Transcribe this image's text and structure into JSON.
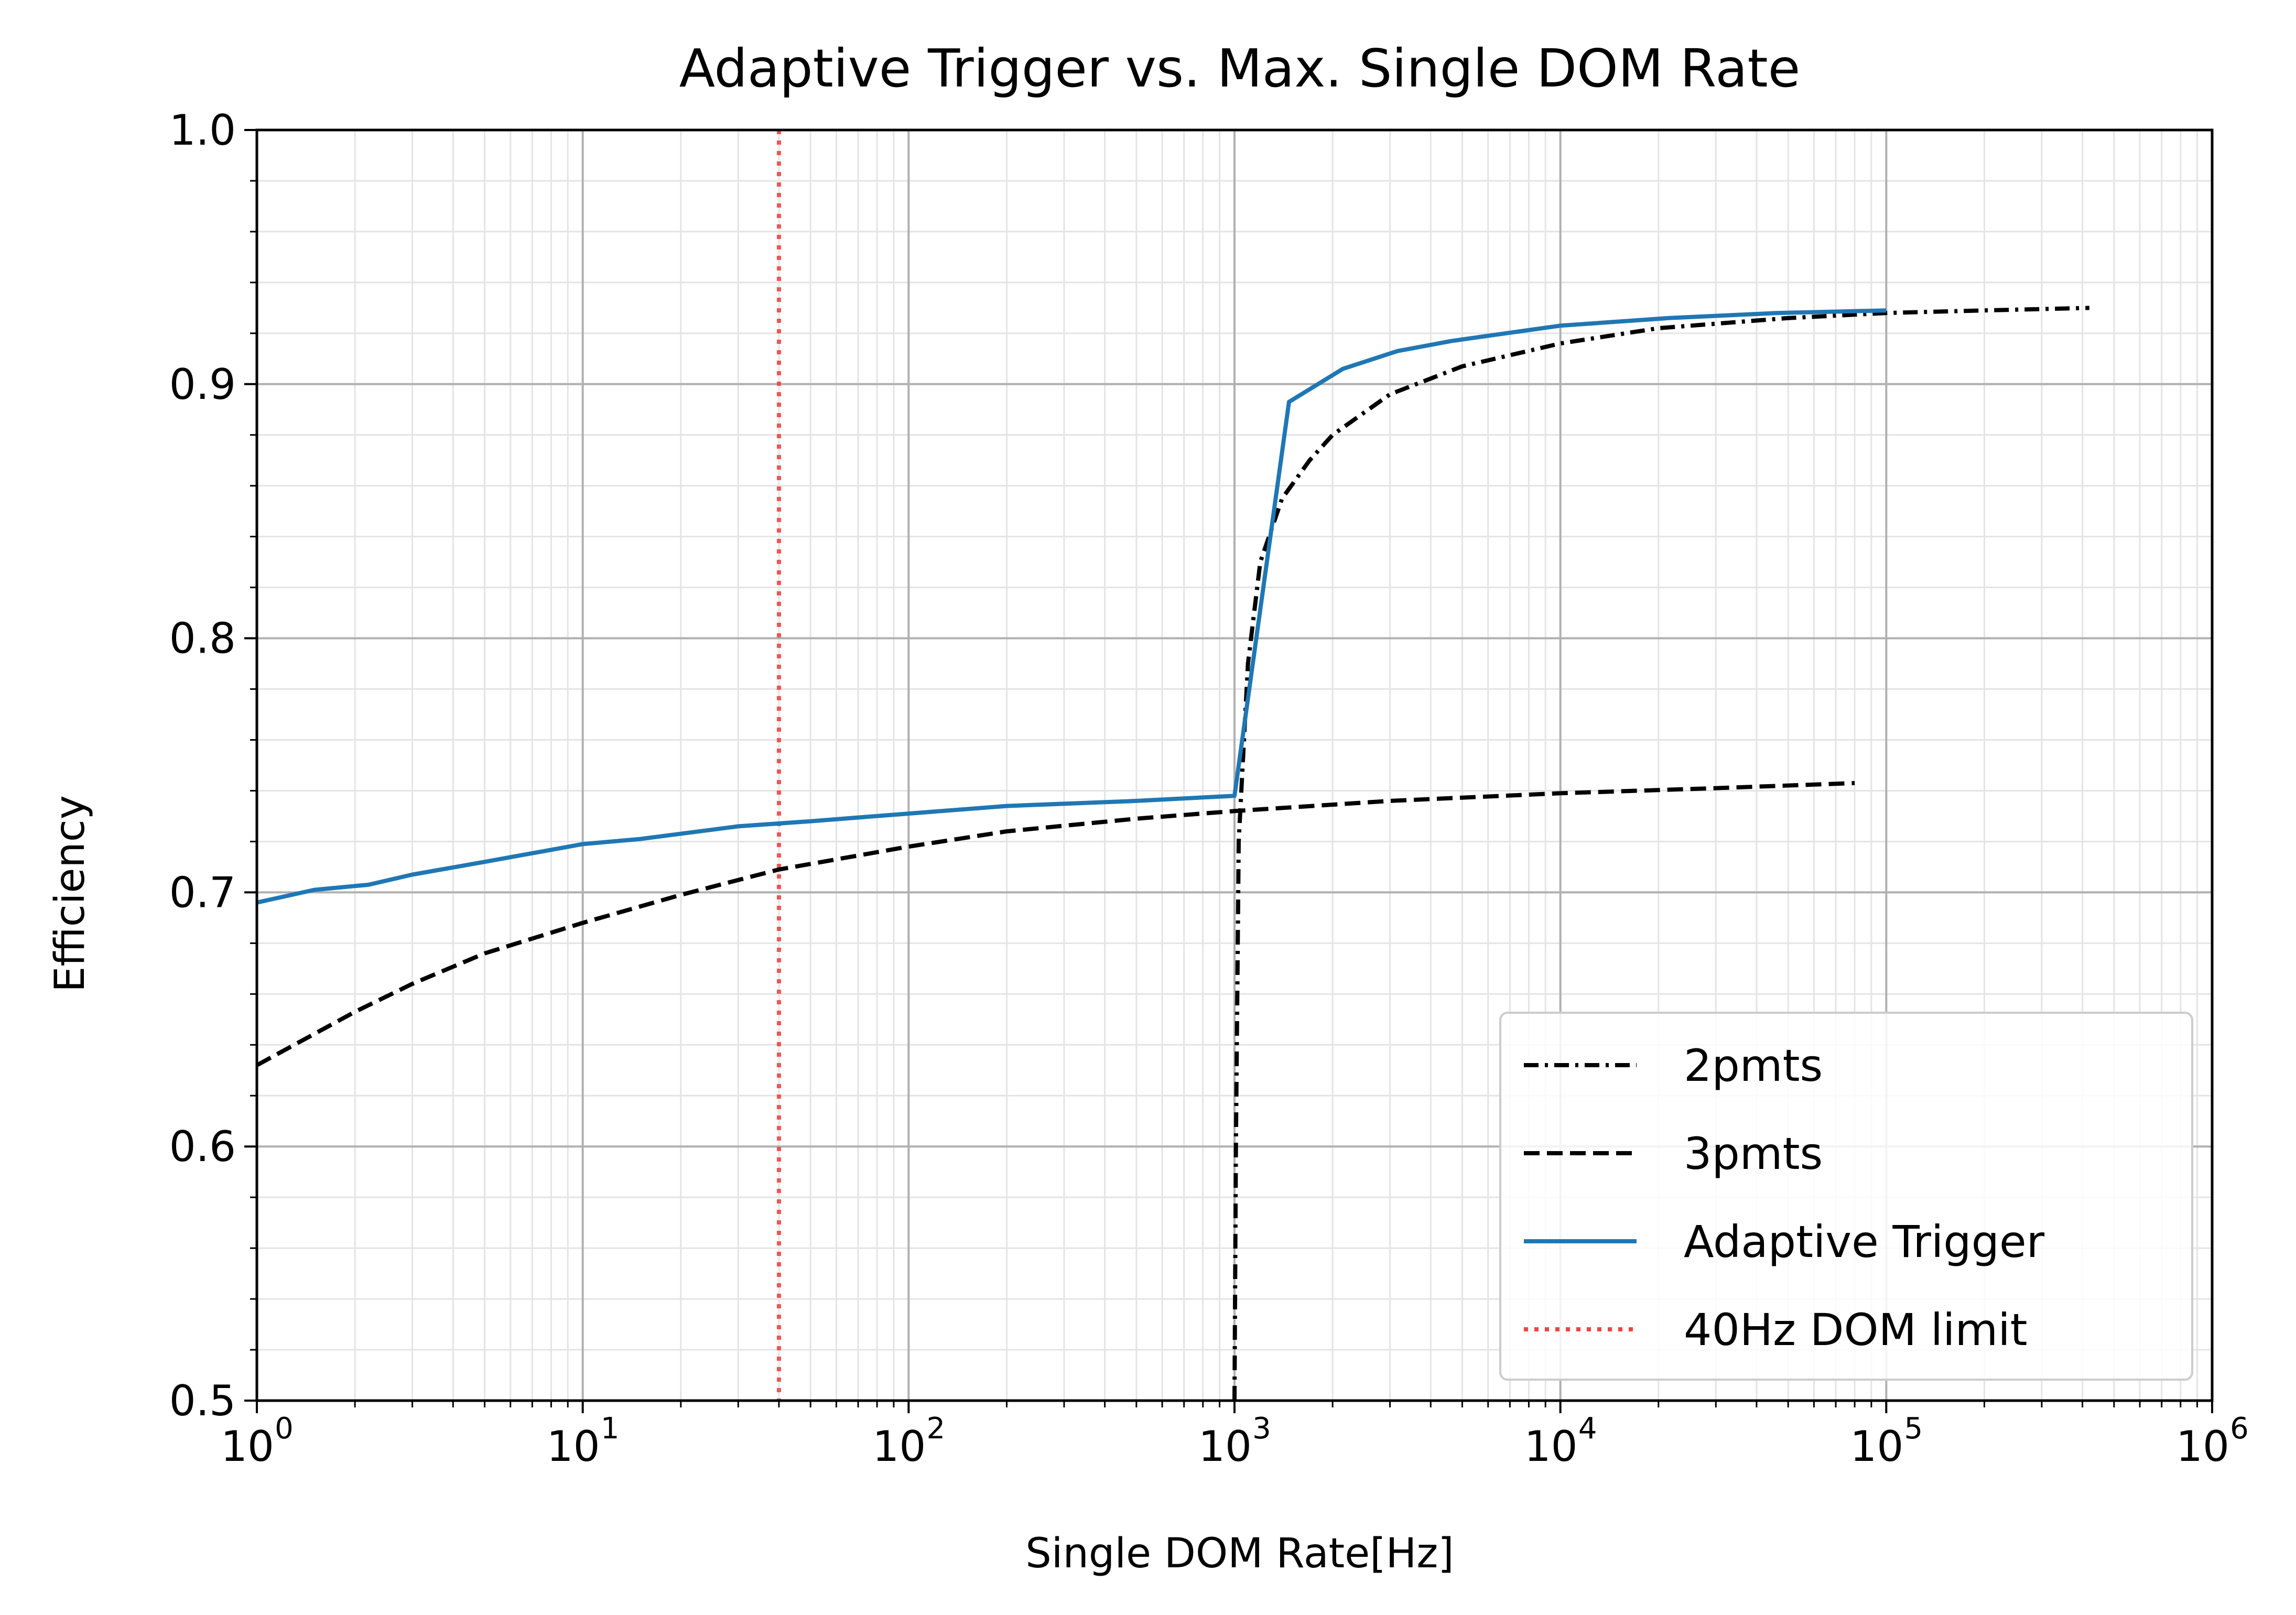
{
  "chart_data": {
    "type": "line",
    "title": "Adaptive Trigger vs. Max. Single DOM Rate",
    "xlabel": "Single DOM Rate[Hz]",
    "ylabel": "Efficiency",
    "xscale": "log",
    "xlim": [
      1,
      1000000
    ],
    "ylim": [
      0.5,
      1.0
    ],
    "grid": "major and minor",
    "legend_position": "lower-right",
    "x_ticks": [
      {
        "base": "10",
        "exp": "0",
        "value": 1
      },
      {
        "base": "10",
        "exp": "1",
        "value": 10
      },
      {
        "base": "10",
        "exp": "2",
        "value": 100
      },
      {
        "base": "10",
        "exp": "3",
        "value": 1000
      },
      {
        "base": "10",
        "exp": "4",
        "value": 10000
      },
      {
        "base": "10",
        "exp": "5",
        "value": 100000
      },
      {
        "base": "10",
        "exp": "6",
        "value": 1000000
      }
    ],
    "y_ticks": [
      "0.5",
      "0.6",
      "0.7",
      "0.8",
      "0.9",
      "1.0"
    ],
    "series": [
      {
        "name": "2pmts",
        "color": "#000000",
        "style": "dashdot",
        "points": [
          [
            1000,
            0.5
          ],
          [
            1010,
            0.6
          ],
          [
            1030,
            0.72
          ],
          [
            1100,
            0.79
          ],
          [
            1200,
            0.83
          ],
          [
            1400,
            0.855
          ],
          [
            1700,
            0.87
          ],
          [
            2000,
            0.88
          ],
          [
            3000,
            0.896
          ],
          [
            5000,
            0.907
          ],
          [
            10000,
            0.916
          ],
          [
            20000,
            0.922
          ],
          [
            50000,
            0.926
          ],
          [
            100000,
            0.928
          ],
          [
            200000,
            0.929
          ],
          [
            420000,
            0.93
          ]
        ]
      },
      {
        "name": "3pmts",
        "color": "#000000",
        "style": "dashed",
        "points": [
          [
            1,
            0.632
          ],
          [
            2,
            0.653
          ],
          [
            3,
            0.664
          ],
          [
            5,
            0.676
          ],
          [
            10,
            0.688
          ],
          [
            20,
            0.699
          ],
          [
            40,
            0.709
          ],
          [
            100,
            0.718
          ],
          [
            200,
            0.724
          ],
          [
            500,
            0.729
          ],
          [
            1000,
            0.732
          ],
          [
            3000,
            0.736
          ],
          [
            10000,
            0.739
          ],
          [
            30000,
            0.741
          ],
          [
            80000,
            0.743
          ]
        ]
      },
      {
        "name": "Adaptive Trigger",
        "color": "#1f77b4",
        "style": "solid",
        "points": [
          [
            1,
            0.696
          ],
          [
            1.5,
            0.701
          ],
          [
            2.2,
            0.703
          ],
          [
            3,
            0.707
          ],
          [
            5,
            0.712
          ],
          [
            10,
            0.719
          ],
          [
            15,
            0.721
          ],
          [
            30,
            0.726
          ],
          [
            50,
            0.728
          ],
          [
            100,
            0.731
          ],
          [
            200,
            0.734
          ],
          [
            500,
            0.736
          ],
          [
            1000,
            0.738
          ],
          [
            1470,
            0.893
          ],
          [
            2150,
            0.906
          ],
          [
            3160,
            0.913
          ],
          [
            4640,
            0.917
          ],
          [
            6810,
            0.92
          ],
          [
            10000,
            0.923
          ],
          [
            21500,
            0.926
          ],
          [
            46400,
            0.928
          ],
          [
            100000,
            0.929
          ]
        ]
      },
      {
        "name": "40Hz DOM limit",
        "color": "#ef4444",
        "style": "dotted",
        "x_value": 40
      }
    ]
  }
}
